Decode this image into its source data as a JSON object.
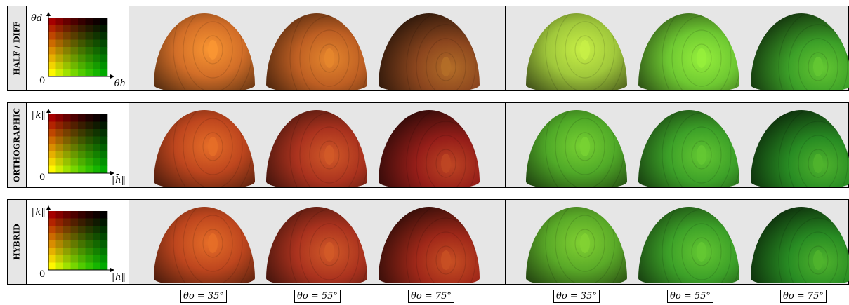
{
  "rows": [
    {
      "label": "HALF / DIFF",
      "y_axis": "θd",
      "x_axis": "θh",
      "origin": "0",
      "left_hue": [
        [
          210,
          110,
          40
        ],
        [
          190,
          95,
          35
        ],
        [
          140,
          70,
          30
        ]
      ],
      "right_hue": [
        [
          160,
          200,
          60
        ],
        [
          110,
          200,
          50
        ],
        [
          60,
          160,
          40
        ]
      ]
    },
    {
      "label": "ORTHOGRAPHIC",
      "y_axis": "‖k̄‖",
      "x_axis": "‖h̄‖",
      "origin": "0",
      "left_hue": [
        [
          190,
          70,
          30
        ],
        [
          170,
          50,
          30
        ],
        [
          150,
          30,
          25
        ]
      ],
      "right_hue": [
        [
          80,
          170,
          40
        ],
        [
          60,
          160,
          40
        ],
        [
          40,
          140,
          35
        ]
      ]
    },
    {
      "label": "HYBRID",
      "y_axis": "‖k‖",
      "x_axis": "‖h̄‖",
      "origin": "0",
      "left_hue": [
        [
          190,
          70,
          30
        ],
        [
          170,
          50,
          30
        ],
        [
          160,
          40,
          25
        ]
      ],
      "right_hue": [
        [
          90,
          170,
          40
        ],
        [
          60,
          160,
          40
        ],
        [
          40,
          140,
          35
        ]
      ]
    }
  ],
  "angles": [
    "θo = 35°",
    "θo = 55°",
    "θo = 75°",
    "θo = 35°",
    "θo = 55°",
    "θo = 75°"
  ],
  "colors": {
    "panel_bg": "#e6e6e6",
    "border": "#000000"
  }
}
